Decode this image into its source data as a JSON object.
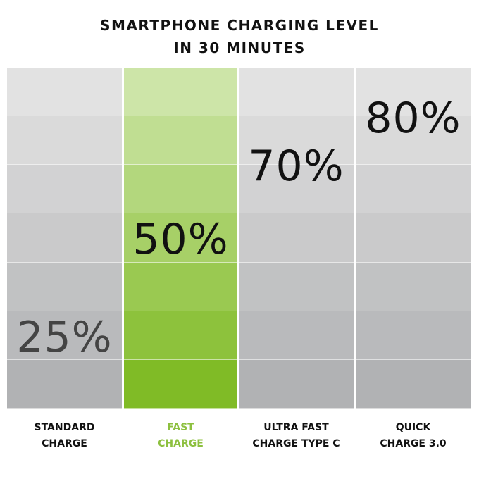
{
  "title_lines": [
    "SMARTPHONE CHARGING LEVEL",
    "IN 30 MINUTES"
  ],
  "chart_data": {
    "type": "bar",
    "title": "SMARTPHONE CHARGING LEVEL IN 30 MINUTES",
    "categories": [
      "STANDARD CHARGE",
      "FAST CHARGE",
      "ULTRA FAST CHARGE TYPE C",
      "QUICK CHARGE 3.0"
    ],
    "category_lines": [
      [
        "STANDARD",
        "CHARGE"
      ],
      [
        "FAST",
        "CHARGE"
      ],
      [
        "ULTRA FAST",
        "CHARGE TYPE C"
      ],
      [
        "QUICK",
        "CHARGE 3.0"
      ]
    ],
    "values": [
      25,
      50,
      70,
      80
    ],
    "value_labels": [
      "25%",
      "50%",
      "70%",
      "80%"
    ],
    "unit": "%",
    "highlighted_category": "FAST CHARGE",
    "colors": {
      "gray_top": "#e2e2e2",
      "gray_bottom": "#b1b2b4",
      "green_top": "#cde5a8",
      "green_bottom": "#80bb26",
      "highlight_text": "#8dc03f",
      "value_text": "#111111",
      "standard_value_text": "#444444"
    }
  }
}
